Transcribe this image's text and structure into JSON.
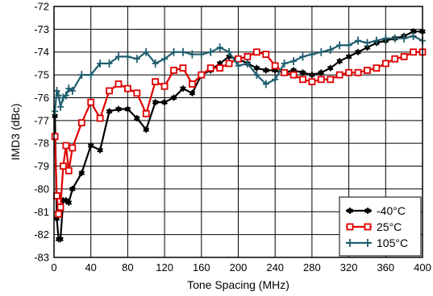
{
  "chart_data": {
    "type": "line",
    "title": "",
    "xlabel": "Tone Spacing (MHz)",
    "ylabel": "IMD3 (dBc)",
    "xlim": [
      0,
      400
    ],
    "ylim": [
      -83,
      -72
    ],
    "xticks": [
      "0",
      "40",
      "80",
      "120",
      "160",
      "200",
      "240",
      "280",
      "320",
      "360",
      "400"
    ],
    "yticks": [
      "-72",
      "-73",
      "-74",
      "-75",
      "-76",
      "-77",
      "-78",
      "-79",
      "-80",
      "-81",
      "-82",
      "-83"
    ],
    "grid": true,
    "legend_position": "bottom-right",
    "series": [
      {
        "name": "-40°C",
        "color": "#000000",
        "marker": "star",
        "x": [
          1,
          3,
          5,
          7,
          10,
          13,
          16,
          20,
          30,
          40,
          50,
          60,
          70,
          80,
          90,
          100,
          110,
          120,
          130,
          140,
          150,
          160,
          170,
          180,
          190,
          200,
          210,
          220,
          230,
          240,
          250,
          260,
          270,
          280,
          290,
          300,
          310,
          320,
          330,
          340,
          350,
          360,
          370,
          380,
          390,
          400
        ],
        "y": [
          -76.8,
          -81.3,
          -82.2,
          -82.2,
          -80.5,
          -80.5,
          -80.6,
          -80.0,
          -79.3,
          -78.1,
          -78.3,
          -76.6,
          -76.5,
          -76.5,
          -76.9,
          -77.4,
          -76.2,
          -76.2,
          -76.0,
          -75.6,
          -75.8,
          -75.0,
          -74.8,
          -74.5,
          -74.2,
          -74.3,
          -74.5,
          -74.7,
          -74.8,
          -74.8,
          -74.9,
          -74.8,
          -74.9,
          -75.0,
          -74.9,
          -74.7,
          -74.4,
          -74.2,
          -74.0,
          -73.8,
          -73.6,
          -73.5,
          -73.4,
          -73.3,
          -73.1,
          -73.1
        ]
      },
      {
        "name": "25°C",
        "color": "#e00000",
        "marker": "square",
        "x": [
          1,
          3,
          5,
          7,
          10,
          13,
          16,
          20,
          30,
          40,
          50,
          60,
          70,
          80,
          90,
          100,
          110,
          120,
          130,
          140,
          150,
          160,
          170,
          180,
          190,
          200,
          210,
          220,
          230,
          240,
          250,
          260,
          270,
          280,
          290,
          300,
          310,
          320,
          330,
          340,
          350,
          360,
          370,
          380,
          390,
          400
        ],
        "y": [
          -77.7,
          -80.3,
          -81.1,
          -80.8,
          -79.0,
          -78.1,
          -79.2,
          -78.2,
          -77.1,
          -76.2,
          -76.9,
          -75.7,
          -75.4,
          -75.6,
          -75.8,
          -76.7,
          -75.3,
          -75.5,
          -74.8,
          -74.7,
          -75.4,
          -75.0,
          -74.7,
          -74.7,
          -74.5,
          -74.3,
          -74.2,
          -74.0,
          -74.1,
          -74.6,
          -74.9,
          -75.0,
          -75.2,
          -75.3,
          -75.2,
          -75.2,
          -75.0,
          -74.9,
          -74.9,
          -74.8,
          -74.7,
          -74.5,
          -74.3,
          -74.2,
          -74.0,
          -74.0
        ]
      },
      {
        "name": "105°C",
        "color": "#1f5f6e",
        "marker": "plus",
        "x": [
          1,
          3,
          5,
          7,
          10,
          13,
          16,
          20,
          30,
          40,
          50,
          60,
          70,
          80,
          90,
          100,
          110,
          120,
          130,
          140,
          150,
          160,
          170,
          180,
          190,
          200,
          210,
          220,
          230,
          240,
          250,
          260,
          270,
          280,
          290,
          300,
          310,
          320,
          330,
          340,
          350,
          360,
          370,
          380,
          390,
          400
        ],
        "y": [
          -76.6,
          -75.7,
          -75.9,
          -76.4,
          -76.0,
          -75.9,
          -75.6,
          -75.7,
          -75.0,
          -75.0,
          -74.5,
          -74.5,
          -74.2,
          -74.2,
          -74.3,
          -74.0,
          -74.5,
          -74.3,
          -74.0,
          -74.0,
          -74.1,
          -74.1,
          -74.0,
          -73.8,
          -74.0,
          -74.6,
          -74.5,
          -75.0,
          -75.4,
          -75.2,
          -74.5,
          -74.4,
          -74.2,
          -74.1,
          -74.0,
          -73.9,
          -73.7,
          -73.7,
          -73.5,
          -73.6,
          -73.5,
          -73.4,
          -73.4,
          -73.4,
          -73.3,
          -73.5
        ]
      }
    ]
  }
}
